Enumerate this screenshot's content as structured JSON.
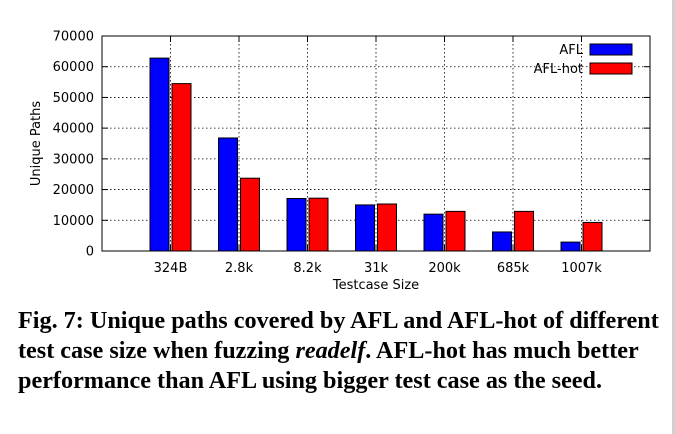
{
  "chart_data": {
    "type": "bar",
    "categories": [
      "324B",
      "2.8k",
      "8.2k",
      "31k",
      "200k",
      "685k",
      "1007k"
    ],
    "series": [
      {
        "name": "AFL",
        "color": "#0000ff",
        "values": [
          62800,
          36800,
          17100,
          15000,
          12000,
          6200,
          2900
        ]
      },
      {
        "name": "AFL-hot",
        "color": "#ff0000",
        "values": [
          54500,
          23700,
          17200,
          15300,
          12900,
          12900,
          9300
        ]
      }
    ],
    "xlabel": "Testcase Size",
    "ylabel": "Unique Paths",
    "ylim": [
      0,
      70000
    ],
    "yticks": [
      0,
      10000,
      20000,
      30000,
      40000,
      50000,
      60000,
      70000
    ],
    "grid": true,
    "legend": "top-right"
  },
  "caption": {
    "prefix": "Fig. 7: Unique paths covered by AFL and AFL-hot of different test case size when fuzzing ",
    "emphasis": "readelf",
    "suffix": ". AFL-hot has much better performance than AFL using bigger test case as the seed."
  }
}
